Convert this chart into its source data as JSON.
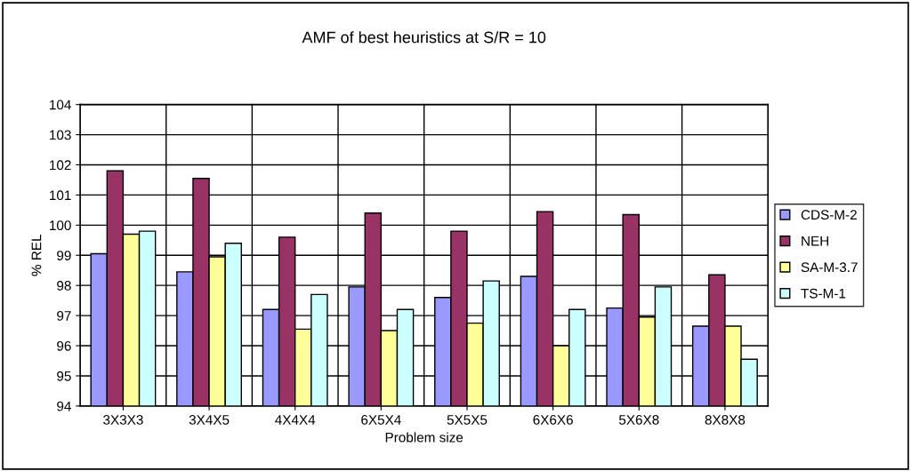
{
  "chart_data": {
    "type": "bar",
    "title": "AMF of best heuristics at S/R = 10",
    "xlabel": "Problem size",
    "ylabel": "% REL",
    "categories": [
      "3X3X3",
      "3X4X5",
      "4X4X4",
      "6X5X4",
      "5X5X5",
      "6X6X6",
      "5X6X8",
      "8X8X8"
    ],
    "series": [
      {
        "name": "CDS-M-2",
        "color": "#9999ff",
        "values": [
          99.05,
          98.45,
          97.2,
          97.95,
          97.6,
          98.3,
          97.25,
          96.65
        ]
      },
      {
        "name": "NEH",
        "color": "#993366",
        "values": [
          101.8,
          101.55,
          99.6,
          100.4,
          99.8,
          100.45,
          100.35,
          98.35
        ]
      },
      {
        "name": "SA-M-3.7",
        "color": "#ffff99",
        "values": [
          99.7,
          98.95,
          96.55,
          96.5,
          96.75,
          96.0,
          96.95,
          96.65
        ]
      },
      {
        "name": "TS-M-1",
        "color": "#ccffff",
        "values": [
          99.8,
          99.4,
          97.7,
          97.2,
          98.15,
          97.2,
          97.95,
          95.55
        ]
      }
    ],
    "ylim": [
      94,
      104
    ],
    "yticks": [
      94,
      95,
      96,
      97,
      98,
      99,
      100,
      101,
      102,
      103,
      104
    ],
    "grid": true,
    "legend": "right"
  }
}
